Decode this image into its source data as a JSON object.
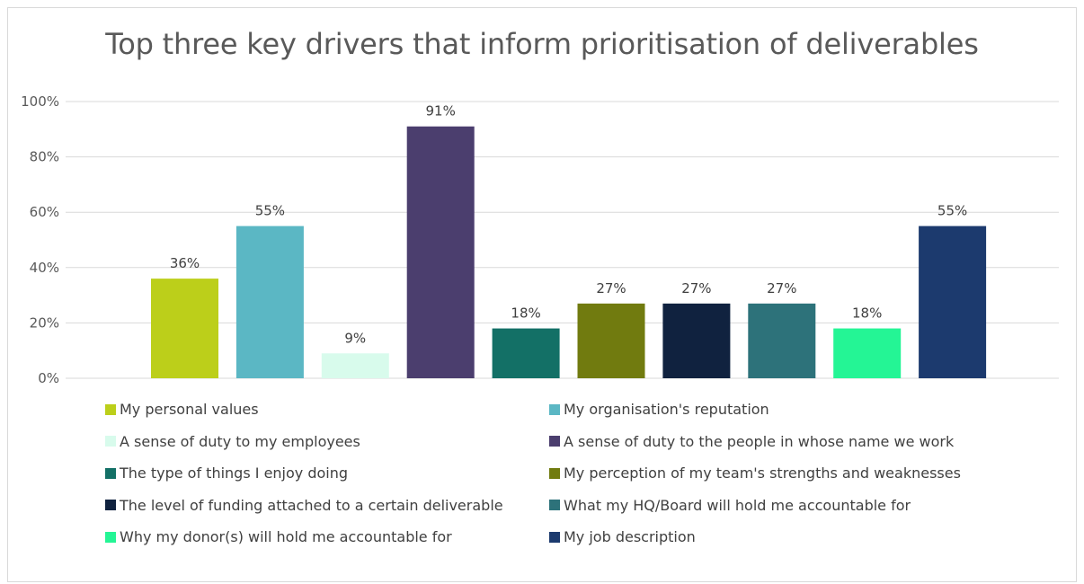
{
  "chart_data": {
    "type": "bar",
    "title": "Top three key drivers that inform prioritisation of deliverables",
    "ylim": [
      0,
      100
    ],
    "yticks": [
      "0%",
      "20%",
      "40%",
      "60%",
      "80%",
      "100%"
    ],
    "yticks_values": [
      0,
      20,
      40,
      60,
      80,
      100
    ],
    "grid": true,
    "legend_position": "bottom",
    "series": [
      {
        "name": "My personal values",
        "value": 36,
        "label": "36%",
        "color": "#bccf1a"
      },
      {
        "name": "My organisation's reputation",
        "value": 55,
        "label": "55%",
        "color": "#5bb7c4"
      },
      {
        "name": "A sense of duty to my employees",
        "value": 9,
        "label": "9%",
        "color": "#d8fbec"
      },
      {
        "name": "A sense of duty to the people in whose name we work",
        "value": 91,
        "label": "91%",
        "color": "#4b3e6e"
      },
      {
        "name": "The type of things I enjoy doing",
        "value": 18,
        "label": "18%",
        "color": "#137066"
      },
      {
        "name": "My perception of my team's strengths and weaknesses",
        "value": 27,
        "label": "27%",
        "color": "#717b0f"
      },
      {
        "name": "The level of funding attached to a certain deliverable",
        "value": 27,
        "label": "27%",
        "color": "#10223f"
      },
      {
        "name": "What my HQ/Board will hold me accountable for",
        "value": 27,
        "label": "27%",
        "color": "#2d727a"
      },
      {
        "name": "Why my donor(s) will hold me accountable for",
        "value": 18,
        "label": "18%",
        "color": "#24f595"
      },
      {
        "name": "My job description",
        "value": 55,
        "label": "55%",
        "color": "#1c3a6e"
      }
    ]
  }
}
